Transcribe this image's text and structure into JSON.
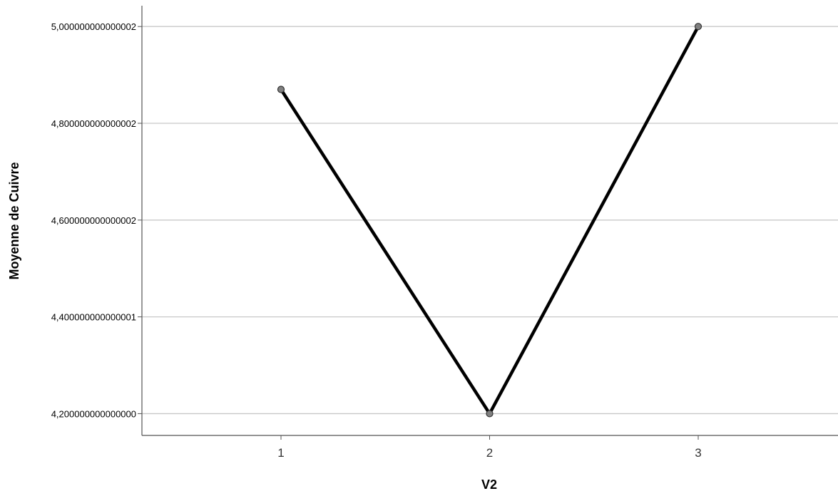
{
  "chart_data": {
    "type": "line",
    "categories": [
      "1",
      "2",
      "3"
    ],
    "series": [
      {
        "values": [
          4.87,
          4.2,
          5.0
        ]
      }
    ],
    "y_ticks": [
      {
        "value": 5.0,
        "label": "5,000000000000002"
      },
      {
        "value": 4.8,
        "label": "4,800000000000002"
      },
      {
        "value": 4.6,
        "label": "4,600000000000002"
      },
      {
        "value": 4.4,
        "label": "4,400000000000001"
      },
      {
        "value": 4.2,
        "label": "4,200000000000000"
      }
    ],
    "ylim": [
      4.155,
      5.043
    ],
    "xlabel": "V2",
    "ylabel": "Moyenne de Cuivre",
    "grid": true,
    "legend": "none",
    "colors": {
      "line": "#000000",
      "marker_fill": "#808080",
      "marker_stroke": "#333333",
      "grid": "#c8c8c8",
      "axis": "#555555"
    }
  }
}
